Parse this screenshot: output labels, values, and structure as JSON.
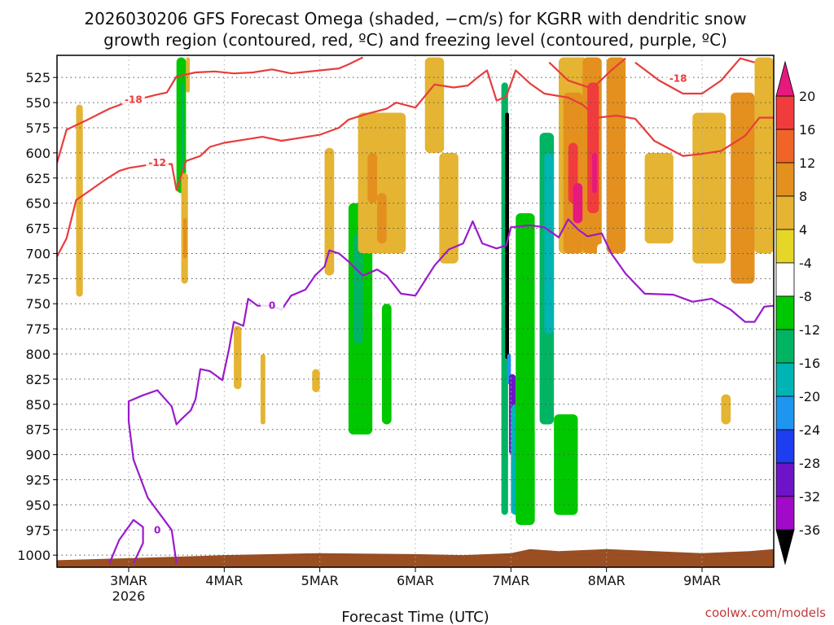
{
  "chart_data": {
    "type": "heatmap",
    "title_lines": [
      "2026030206 GFS Forecast Omega (shaded, −cm/s) for KGRR with dendritic snow",
      "growth region (contoured, red, ºC) and freezing level (contoured, purple, ºC)"
    ],
    "xlabel": "Forecast Time (UTC)",
    "credit": "coolwx.com/models",
    "x_ticks": [
      {
        "day": 3,
        "label": "3MAR",
        "sub": "2026"
      },
      {
        "day": 4,
        "label": "4MAR",
        "sub": ""
      },
      {
        "day": 5,
        "label": "5MAR",
        "sub": ""
      },
      {
        "day": 6,
        "label": "6MAR",
        "sub": ""
      },
      {
        "day": 7,
        "label": "7MAR",
        "sub": ""
      },
      {
        "day": 8,
        "label": "8MAR",
        "sub": ""
      },
      {
        "day": 9,
        "label": "9MAR",
        "sub": ""
      }
    ],
    "xlim": [
      2.25,
      9.75
    ],
    "ylim_hpa": [
      1012,
      503
    ],
    "y_ticks": [
      525,
      550,
      575,
      600,
      625,
      650,
      675,
      700,
      725,
      750,
      775,
      800,
      825,
      850,
      875,
      900,
      925,
      950,
      975,
      1000
    ],
    "colorbar": {
      "levels": [
        20,
        16,
        12,
        8,
        4,
        -4,
        -8,
        -12,
        -16,
        -20,
        -24,
        -28,
        -32,
        -36
      ],
      "colors": [
        "#f03c3c",
        "#f06428",
        "#e4901e",
        "#e4b432",
        "#e6d628",
        "#ffffff",
        "#00c800",
        "#00b464",
        "#00b4b4",
        "#1e96f0",
        "#1e3cf0",
        "#6e14c8",
        "#a00ac8",
        "#a0a0a0"
      ],
      "top_arrow": "#e6197d",
      "bottom_arrow": "#000000"
    },
    "dgz_contours": [
      {
        "level": -18,
        "label": "-18",
        "points": [
          [
            2.25,
            610
          ],
          [
            2.35,
            577
          ],
          [
            2.55,
            568
          ],
          [
            2.8,
            556
          ],
          [
            3.0,
            549
          ],
          [
            3.3,
            542
          ],
          [
            3.4,
            540
          ],
          [
            3.5,
            524
          ],
          [
            3.7,
            520
          ],
          [
            3.9,
            519
          ],
          [
            4.1,
            521
          ],
          [
            4.3,
            520
          ],
          [
            4.5,
            517
          ],
          [
            4.7,
            521
          ],
          [
            5.0,
            518
          ],
          [
            5.2,
            516
          ],
          [
            5.3,
            512
          ],
          [
            5.45,
            505
          ]
        ],
        "label_pos": [
          3.05,
          547
        ]
      },
      {
        "level": -12,
        "label": "-12",
        "points": [
          [
            2.25,
            703
          ],
          [
            2.35,
            685
          ],
          [
            2.45,
            647
          ],
          [
            2.6,
            637
          ],
          [
            2.75,
            627
          ],
          [
            2.9,
            618
          ],
          [
            3.0,
            615
          ],
          [
            3.2,
            612
          ],
          [
            3.45,
            611
          ],
          [
            3.5,
            637
          ],
          [
            3.6,
            608
          ],
          [
            3.75,
            603
          ],
          [
            3.85,
            594
          ],
          [
            4.0,
            590
          ],
          [
            4.2,
            587
          ],
          [
            4.4,
            584
          ],
          [
            4.6,
            588
          ],
          [
            4.8,
            585
          ],
          [
            5.0,
            582
          ],
          [
            5.2,
            575
          ],
          [
            5.3,
            567
          ],
          [
            5.5,
            561
          ],
          [
            5.7,
            556
          ],
          [
            5.8,
            550
          ],
          [
            6.0,
            555
          ],
          [
            6.2,
            532
          ],
          [
            6.4,
            535
          ],
          [
            6.55,
            533
          ],
          [
            6.65,
            525
          ],
          [
            6.75,
            518
          ],
          [
            6.85,
            548
          ],
          [
            6.95,
            544
          ],
          [
            7.05,
            518
          ],
          [
            7.2,
            531
          ],
          [
            7.35,
            541
          ],
          [
            7.6,
            545
          ],
          [
            7.75,
            552
          ],
          [
            7.9,
            565
          ],
          [
            8.1,
            563
          ],
          [
            8.3,
            566
          ],
          [
            8.5,
            588
          ],
          [
            8.8,
            603
          ],
          [
            9.0,
            601
          ],
          [
            9.2,
            598
          ],
          [
            9.45,
            583
          ],
          [
            9.6,
            565
          ],
          [
            9.75,
            565
          ]
        ],
        "label_pos": [
          3.3,
          610
        ]
      },
      {
        "level": -18,
        "label": "-18",
        "points": [
          [
            7.4,
            510
          ],
          [
            7.6,
            528
          ],
          [
            7.85,
            536
          ],
          [
            8.05,
            518
          ],
          [
            8.2,
            506
          ]
        ],
        "label_pos": [
          8.75,
          526
        ]
      },
      {
        "level": -18,
        "label": "",
        "points": [
          [
            8.3,
            510
          ],
          [
            8.55,
            528
          ],
          [
            8.8,
            541
          ],
          [
            9.0,
            541
          ],
          [
            9.2,
            528
          ],
          [
            9.4,
            506
          ],
          [
            9.55,
            510
          ]
        ],
        "label_pos": null
      }
    ],
    "freezing_contours": [
      {
        "level": 0,
        "label": "0",
        "points": [
          [
            2.8,
            1008
          ],
          [
            2.9,
            985
          ],
          [
            3.05,
            965
          ],
          [
            3.15,
            972
          ],
          [
            3.15,
            988
          ],
          [
            3.05,
            1008
          ]
        ],
        "label_pos": [
          3.3,
          975
        ]
      },
      {
        "level": 0,
        "label": "0",
        "points": [
          [
            3.5,
            1008
          ],
          [
            3.45,
            975
          ],
          [
            3.2,
            943
          ],
          [
            3.05,
            905
          ],
          [
            3.0,
            867
          ],
          [
            3.0,
            847
          ],
          [
            3.15,
            841
          ],
          [
            3.3,
            836
          ],
          [
            3.45,
            852
          ],
          [
            3.5,
            870
          ],
          [
            3.55,
            865
          ],
          [
            3.65,
            856
          ],
          [
            3.7,
            845
          ],
          [
            3.75,
            815
          ],
          [
            3.85,
            817
          ],
          [
            3.98,
            826
          ],
          [
            4.05,
            795
          ],
          [
            4.1,
            768
          ],
          [
            4.2,
            772
          ],
          [
            4.25,
            745
          ],
          [
            4.35,
            752
          ],
          [
            4.5,
            752
          ],
          [
            4.6,
            756
          ],
          [
            4.7,
            742
          ],
          [
            4.85,
            736
          ],
          [
            4.95,
            722
          ],
          [
            5.05,
            713
          ],
          [
            5.1,
            697
          ],
          [
            5.2,
            700
          ],
          [
            5.3,
            708
          ],
          [
            5.45,
            722
          ],
          [
            5.6,
            716
          ],
          [
            5.7,
            722
          ],
          [
            5.85,
            740
          ],
          [
            6.0,
            742
          ],
          [
            6.2,
            712
          ],
          [
            6.35,
            696
          ],
          [
            6.5,
            690
          ],
          [
            6.6,
            668
          ],
          [
            6.7,
            690
          ],
          [
            6.85,
            695
          ],
          [
            6.95,
            692
          ],
          [
            7.0,
            674
          ],
          [
            7.2,
            672
          ],
          [
            7.35,
            674
          ],
          [
            7.5,
            684
          ],
          [
            7.6,
            666
          ],
          [
            7.7,
            676
          ],
          [
            7.8,
            683
          ],
          [
            7.95,
            680
          ],
          [
            8.05,
            700
          ],
          [
            8.2,
            720
          ],
          [
            8.4,
            740
          ],
          [
            8.7,
            741
          ],
          [
            8.9,
            748
          ],
          [
            9.1,
            745
          ],
          [
            9.3,
            756
          ],
          [
            9.45,
            768
          ],
          [
            9.55,
            768
          ],
          [
            9.65,
            753
          ],
          [
            9.75,
            752
          ]
        ],
        "label_pos": [
          4.5,
          752
        ]
      }
    ],
    "omega_regions": [
      {
        "x": [
          2.45,
          2.52
        ],
        "p": [
          552,
          743
        ],
        "value": 5
      },
      {
        "x": [
          2.52,
          2.55
        ],
        "p": [
          505,
          557
        ],
        "value": -6
      },
      {
        "x": [
          2.7,
          2.72
        ],
        "p": [
          573,
          586
        ],
        "value": -6
      },
      {
        "x": [
          3.4,
          3.47
        ],
        "p": [
          505,
          546
        ],
        "value": -6
      },
      {
        "x": [
          3.5,
          3.6
        ],
        "p": [
          505,
          640
        ],
        "value": -9
      },
      {
        "x": [
          3.55,
          3.58
        ],
        "p": [
          530,
          640
        ],
        "value": -14
      },
      {
        "x": [
          3.55,
          3.62
        ],
        "p": [
          620,
          730
        ],
        "value": 6
      },
      {
        "x": [
          3.57,
          3.61
        ],
        "p": [
          665,
          705
        ],
        "value": 10
      },
      {
        "x": [
          3.6,
          3.64
        ],
        "p": [
          505,
          540
        ],
        "value": 5
      },
      {
        "x": [
          3.9,
          3.95
        ],
        "p": [
          505,
          575
        ],
        "value": -6
      },
      {
        "x": [
          4.1,
          4.18
        ],
        "p": [
          772,
          835
        ],
        "value": 5
      },
      {
        "x": [
          4.38,
          4.43
        ],
        "p": [
          800,
          870
        ],
        "value": 5
      },
      {
        "x": [
          4.92,
          5.0
        ],
        "p": [
          815,
          838
        ],
        "value": 5
      },
      {
        "x": [
          5.05,
          5.15
        ],
        "p": [
          595,
          722
        ],
        "value": 5
      },
      {
        "x": [
          5.2,
          5.4
        ],
        "p": [
          505,
          600
        ],
        "value": -6
      },
      {
        "x": [
          5.2,
          5.5
        ],
        "p": [
          600,
          700
        ],
        "value": -7
      },
      {
        "x": [
          5.3,
          5.55
        ],
        "p": [
          650,
          880
        ],
        "value": -9
      },
      {
        "x": [
          5.35,
          5.45
        ],
        "p": [
          680,
          790
        ],
        "value": -13
      },
      {
        "x": [
          5.4,
          5.9
        ],
        "p": [
          560,
          700
        ],
        "value": 5
      },
      {
        "x": [
          5.5,
          5.6
        ],
        "p": [
          600,
          650
        ],
        "value": 9
      },
      {
        "x": [
          5.6,
          5.7
        ],
        "p": [
          640,
          690
        ],
        "value": 12
      },
      {
        "x": [
          5.65,
          5.75
        ],
        "p": [
          750,
          870
        ],
        "value": -9
      },
      {
        "x": [
          5.9,
          6.0
        ],
        "p": [
          700,
          860
        ],
        "value": -7
      },
      {
        "x": [
          6.05,
          6.1
        ],
        "p": [
          730,
          780
        ],
        "value": -7
      },
      {
        "x": [
          6.1,
          6.3
        ],
        "p": [
          505,
          600
        ],
        "value": 5
      },
      {
        "x": [
          6.25,
          6.45
        ],
        "p": [
          600,
          710
        ],
        "value": 5
      },
      {
        "x": [
          6.9,
          6.97
        ],
        "p": [
          530,
          960
        ],
        "value": -12
      },
      {
        "x": [
          6.94,
          6.98
        ],
        "p": [
          560,
          805
        ],
        "value": -36
      },
      {
        "x": [
          6.96,
          7.0
        ],
        "p": [
          800,
          830
        ],
        "value": -22
      },
      {
        "x": [
          6.98,
          7.05
        ],
        "p": [
          820,
          900
        ],
        "value": -28
      },
      {
        "x": [
          7.0,
          7.1
        ],
        "p": [
          850,
          960
        ],
        "value": -16
      },
      {
        "x": [
          7.05,
          7.25
        ],
        "p": [
          660,
          970
        ],
        "value": -8
      },
      {
        "x": [
          7.25,
          7.35
        ],
        "p": [
          505,
          880
        ],
        "value": -7
      },
      {
        "x": [
          7.3,
          7.45
        ],
        "p": [
          580,
          870
        ],
        "value": -12
      },
      {
        "x": [
          7.35,
          7.45
        ],
        "p": [
          600,
          780
        ],
        "value": -16
      },
      {
        "x": [
          7.45,
          7.7
        ],
        "p": [
          860,
          960
        ],
        "value": -8
      },
      {
        "x": [
          7.5,
          7.8
        ],
        "p": [
          505,
          700
        ],
        "value": 6
      },
      {
        "x": [
          7.55,
          7.75
        ],
        "p": [
          540,
          700
        ],
        "value": 9
      },
      {
        "x": [
          7.6,
          7.7
        ],
        "p": [
          590,
          650
        ],
        "value": 17
      },
      {
        "x": [
          7.65,
          7.75
        ],
        "p": [
          630,
          670
        ],
        "value": 20
      },
      {
        "x": [
          7.75,
          7.95
        ],
        "p": [
          505,
          700
        ],
        "value": 12
      },
      {
        "x": [
          7.8,
          7.92
        ],
        "p": [
          530,
          660
        ],
        "value": 17
      },
      {
        "x": [
          7.85,
          7.9
        ],
        "p": [
          600,
          640
        ],
        "value": 20
      },
      {
        "x": [
          7.9,
          8.2
        ],
        "p": [
          690,
          840
        ],
        "value": -7
      },
      {
        "x": [
          8.0,
          8.2
        ],
        "p": [
          505,
          700
        ],
        "value": 9
      },
      {
        "x": [
          8.1,
          8.2
        ],
        "p": [
          540,
          600
        ],
        "value": 12
      },
      {
        "x": [
          8.3,
          8.45
        ],
        "p": [
          520,
          655
        ],
        "value": -6
      },
      {
        "x": [
          8.4,
          8.7
        ],
        "p": [
          600,
          690
        ],
        "value": 5
      },
      {
        "x": [
          8.9,
          9.25
        ],
        "p": [
          560,
          710
        ],
        "value": 5
      },
      {
        "x": [
          9.0,
          9.1
        ],
        "p": [
          825,
          890
        ],
        "value": -7
      },
      {
        "x": [
          9.3,
          9.55
        ],
        "p": [
          540,
          730
        ],
        "value": 9
      },
      {
        "x": [
          9.55,
          9.75
        ],
        "p": [
          505,
          700
        ],
        "value": 6
      },
      {
        "x": [
          9.2,
          9.3
        ],
        "p": [
          840,
          870
        ],
        "value": 5
      }
    ],
    "ground": [
      [
        2.25,
        1005
      ],
      [
        3.0,
        1003
      ],
      [
        4.0,
        1000
      ],
      [
        5.0,
        998
      ],
      [
        6.0,
        999
      ],
      [
        6.5,
        1000
      ],
      [
        7.0,
        998
      ],
      [
        7.2,
        994
      ],
      [
        7.5,
        996
      ],
      [
        8.0,
        994
      ],
      [
        8.5,
        996
      ],
      [
        9.0,
        998
      ],
      [
        9.5,
        996
      ],
      [
        9.75,
        994
      ]
    ]
  }
}
